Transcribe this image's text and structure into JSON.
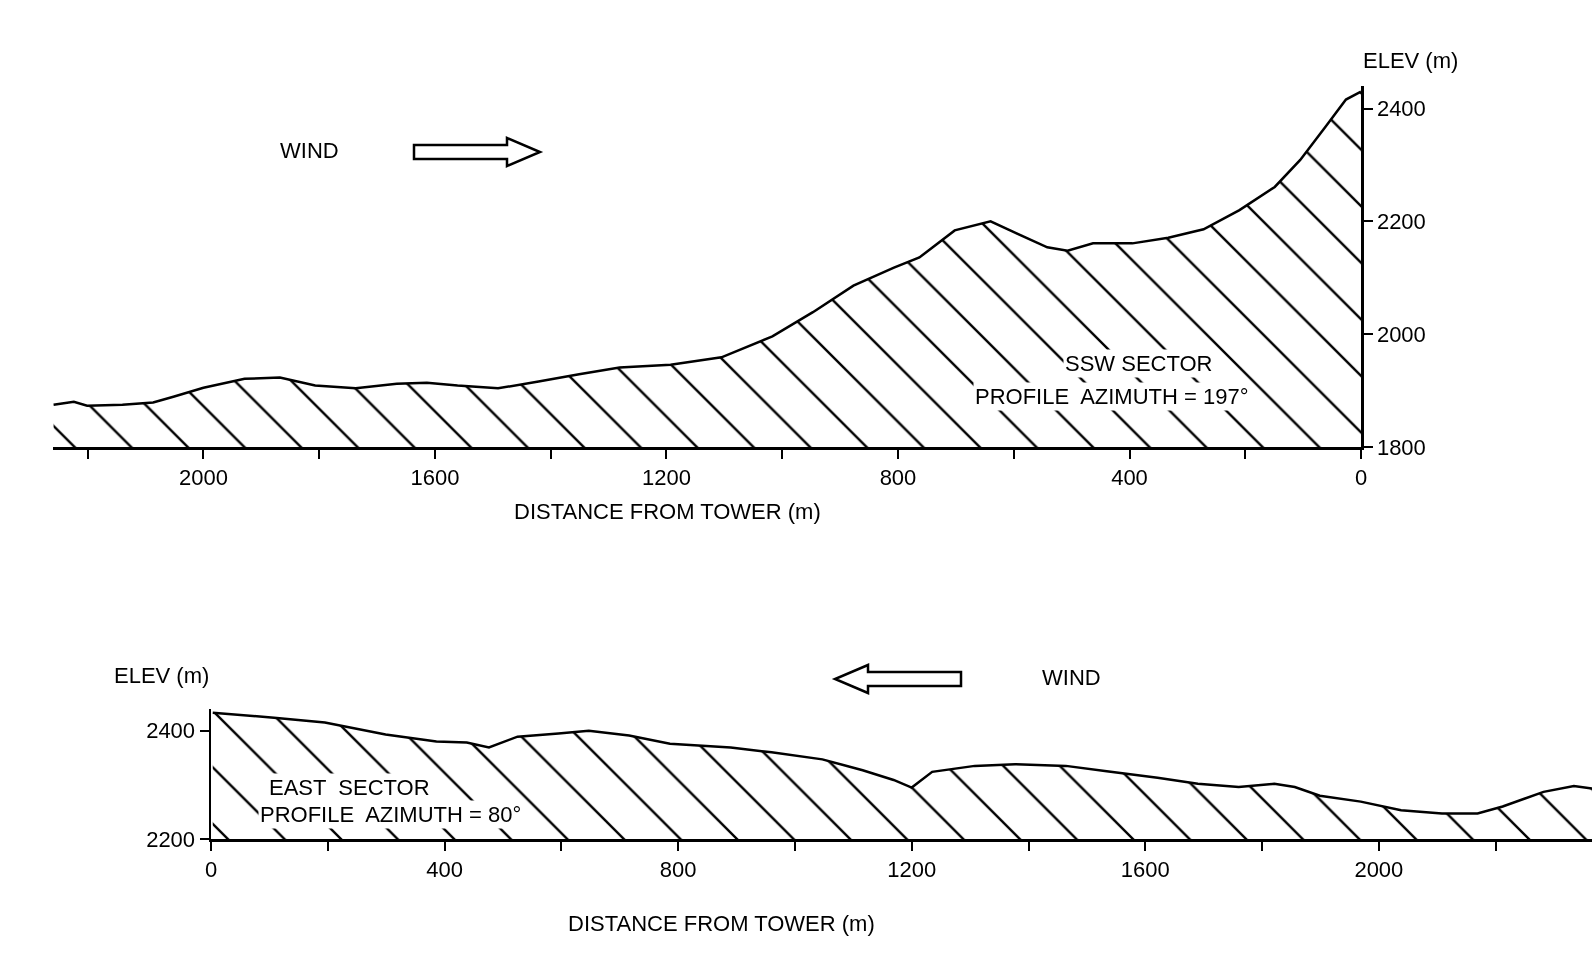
{
  "chart_data": [
    {
      "type": "area",
      "xlabel": "DISTANCE FROM TOWER (m)",
      "ylabel": "ELEV (m)",
      "annotations": [
        "WIND",
        "SSW SECTOR",
        "PROFILE  AZIMUTH = 197°"
      ],
      "x": [
        2259,
        2224,
        2201,
        2140,
        2087,
        2052,
        2000,
        1929,
        1868,
        1807,
        1737,
        1666,
        1614,
        1561,
        1491,
        1421,
        1351,
        1281,
        1193,
        1105,
        1017,
        947,
        877,
        807,
        763,
        702,
        640,
        596,
        542,
        507,
        463,
        395,
        333,
        272,
        210,
        149,
        105,
        61,
        26,
        0
      ],
      "series": [
        {
          "color": "#000000",
          "values": [
            1875,
            1880,
            1873,
            1875,
            1879,
            1889,
            1905,
            1921,
            1923,
            1909,
            1904,
            1912,
            1914,
            1909,
            1904,
            1916,
            1929,
            1941,
            1946,
            1959,
            1996,
            2039,
            2086,
            2118,
            2136,
            2184,
            2200,
            2179,
            2154,
            2148,
            2161,
            2161,
            2171,
            2186,
            2220,
            2261,
            2309,
            2368,
            2416,
            2430
          ]
        }
      ],
      "xlim": [
        2260,
        0
      ],
      "xticks": [
        {
          "value": 2200,
          "label": null
        },
        2000,
        {
          "value": 1800,
          "label": null
        },
        1600,
        {
          "value": 1400,
          "label": null
        },
        1200,
        {
          "value": 1000,
          "label": null
        },
        800,
        {
          "value": 600,
          "label": null
        },
        400,
        {
          "value": 200,
          "label": null
        },
        0
      ],
      "ylim": [
        1800,
        2440
      ],
      "yticks": [
        1800,
        2000,
        2200,
        2400
      ],
      "grid": false,
      "legend": false,
      "marker": "none",
      "line_style": "solid"
    },
    {
      "type": "area",
      "xlabel": "DISTANCE FROM TOWER (m)",
      "ylabel": "ELEV (m)",
      "annotations": [
        "WIND",
        "EAST  SECTOR",
        "PROFILE  AZIMUTH = 80°"
      ],
      "x": [
        3,
        108,
        195,
        299,
        386,
        438,
        476,
        525,
        595,
        647,
        716,
        786,
        890,
        960,
        1047,
        1116,
        1169,
        1200,
        1235,
        1308,
        1377,
        1464,
        1534,
        1621,
        1690,
        1760,
        1821,
        1856,
        1899,
        1969,
        2038,
        2108,
        2169,
        2212,
        2282,
        2334,
        2365
      ],
      "series": [
        {
          "color": "#000000",
          "values": [
            2433,
            2424,
            2415,
            2393,
            2380,
            2378,
            2369,
            2389,
            2395,
            2400,
            2391,
            2376,
            2369,
            2360,
            2347,
            2327,
            2309,
            2295,
            2324,
            2335,
            2338,
            2335,
            2325,
            2313,
            2302,
            2296,
            2302,
            2296,
            2280,
            2269,
            2253,
            2247,
            2247,
            2260,
            2287,
            2298,
            2293
          ]
        }
      ],
      "xlim": [
        0,
        2365
      ],
      "xticks": [
        0,
        {
          "value": 200,
          "label": null
        },
        400,
        {
          "value": 600,
          "label": null
        },
        800,
        {
          "value": 1000,
          "label": null
        },
        1200,
        {
          "value": 1400,
          "label": null
        },
        1600,
        {
          "value": 1800,
          "label": null
        },
        2000,
        {
          "value": 2200,
          "label": null
        }
      ],
      "ylim": [
        2200,
        2440
      ],
      "yticks": [
        2200,
        2400
      ],
      "grid": false,
      "legend": false,
      "marker": "none",
      "line_style": "solid"
    }
  ]
}
